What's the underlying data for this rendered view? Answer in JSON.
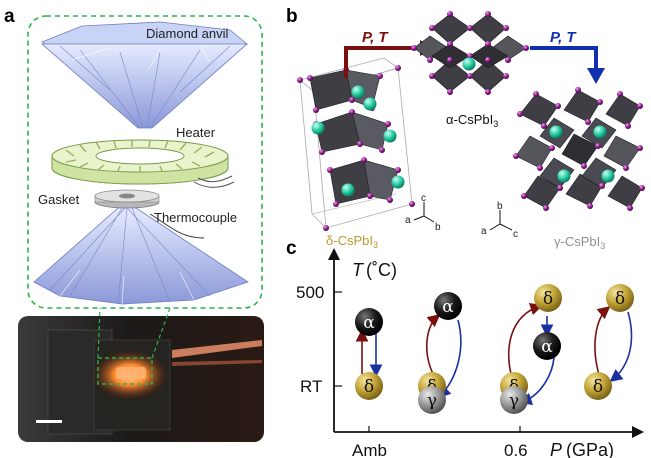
{
  "panel_a": {
    "label": "a",
    "parts": {
      "anvil_top": "Diamond anvil",
      "heater": "Heater",
      "gasket": "Gasket",
      "thermocouple": "Thermocouple"
    }
  },
  "panel_b": {
    "label": "b",
    "arrow_left": "P, T",
    "arrow_right": "P, T",
    "delta_phase": "δ-CsPbI",
    "alpha_phase": "α-CsPbI",
    "gamma_phase": "γ-CsPbI",
    "subscript": "3",
    "axis_labels": {
      "a": "a",
      "b": "b",
      "c": "c"
    }
  },
  "panel_c": {
    "label": "c",
    "y_axis_T": "T",
    "y_axis_unit": "(˚C)",
    "x_axis_P": "P",
    "x_axis_unit": "(GPa)",
    "y_ticks": [
      "500",
      "RT"
    ],
    "x_ticks": [
      "Amb",
      "0.6"
    ],
    "symbols": {
      "alpha": "α",
      "delta": "δ",
      "gamma": "γ"
    },
    "colors": {
      "alpha": "#111111",
      "delta": "#b89a2a",
      "gamma": "#8a8a8a",
      "heat_arrow": "#7a1010",
      "cool_arrow": "#1a2fa0"
    }
  },
  "colors": {
    "dashed_frame": "#2bb34a",
    "arrow_dark_red": "#7a1010",
    "arrow_blue": "#1030b0",
    "delta_text": "#b89a2a",
    "gamma_text": "#909090"
  }
}
